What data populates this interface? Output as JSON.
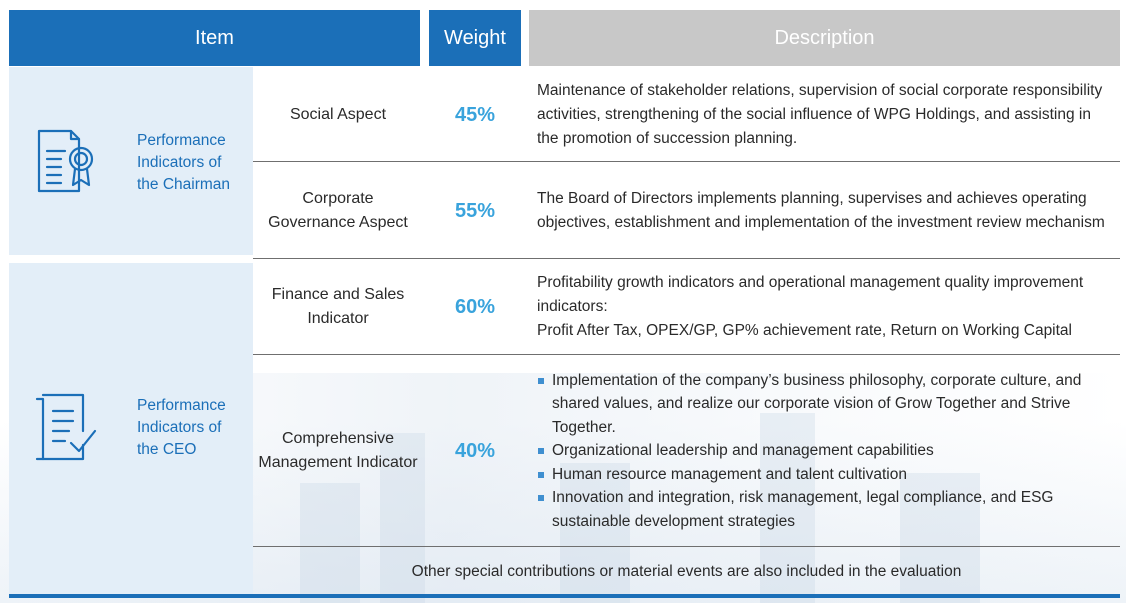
{
  "header": {
    "item": "Item",
    "weight": "Weight",
    "description": "Description"
  },
  "groups": [
    {
      "label": "Performance Indicators of the Chairman",
      "icon": "certificate-icon"
    },
    {
      "label": "Performance Indicators of the CEO",
      "icon": "checklist-icon"
    }
  ],
  "rows": [
    {
      "aspect": "Social Aspect",
      "weight": "45%",
      "description": "Maintenance of stakeholder relations, supervision of social corporate responsibility activities, strengthening of the social influence of WPG Holdings, and assisting in the promotion of succession planning."
    },
    {
      "aspect": "Corporate Governance Aspect",
      "weight": "55%",
      "description": "The Board of Directors implements planning, supervises and achieves operating objectives, establishment and implementation of the investment review mechanism"
    },
    {
      "aspect": "Finance and Sales Indicator",
      "weight": "60%",
      "description_lines": [
        "Profitability growth indicators and operational management quality improvement indicators:",
        "Profit After Tax, OPEX/GP, GP% achievement rate, Return on Working Capital"
      ]
    },
    {
      "aspect": "Comprehensive Management Indicator",
      "weight": "40%",
      "bullets": [
        "Implementation of the company’s business philosophy, corporate culture, and shared values, and realize our corporate vision of Grow Together and Strive Together.",
        "Organizational leadership and management capabilities",
        "Human resource management and talent cultivation",
        "Innovation and integration, risk management, legal compliance, and ESG sustainable development strategies"
      ]
    }
  ],
  "footer_note": "Other special contributions or material events are also included in the evaluation",
  "colors": {
    "primary": "#1b6fb8",
    "accent": "#39a3dc",
    "panel": "#e3eef8",
    "header_gray": "#c8c8c8"
  }
}
